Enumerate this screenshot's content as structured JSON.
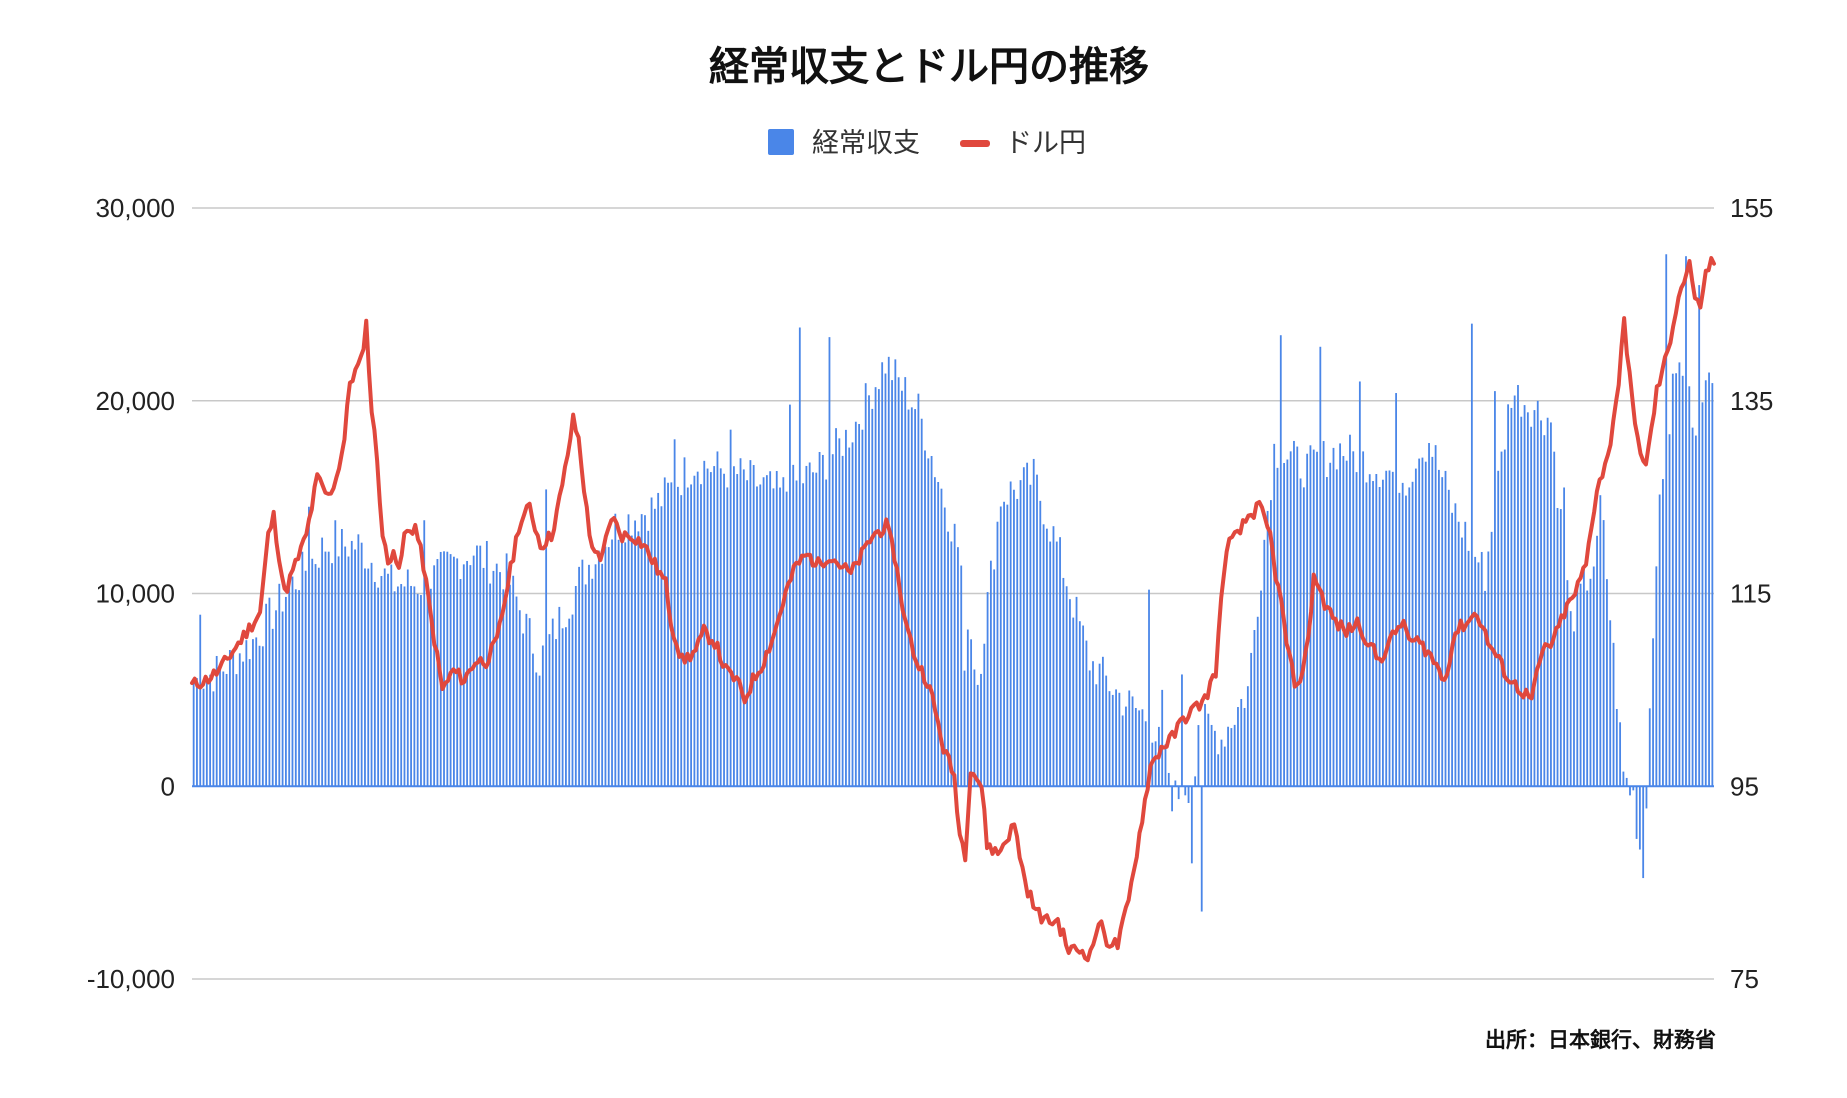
{
  "chart_data": {
    "type": "bar+line",
    "title": "経常収支とドル円の推移",
    "source": "出所：日本銀行、財務省",
    "legend": [
      {
        "name": "経常収支",
        "color": "#4a86e8",
        "kind": "bar"
      },
      {
        "name": "ドル円",
        "color": "#e0483d",
        "kind": "line"
      }
    ],
    "legend_position": "top-center",
    "grid": true,
    "y_left": {
      "min": -10000,
      "max": 30000,
      "ticks": [
        "30,000",
        "20,000",
        "10,000",
        "0",
        "-10,000"
      ],
      "tick_values": [
        30000,
        20000,
        10000,
        0,
        -10000
      ]
    },
    "y_right": {
      "min": 75,
      "max": 155,
      "ticks": [
        "155",
        "135",
        "115",
        "95",
        "75"
      ],
      "tick_values": [
        155,
        135,
        115,
        95,
        75
      ]
    },
    "series": [
      {
        "name": "経常収支",
        "axis": "left",
        "keypoints": [
          [
            0,
            5400
          ],
          [
            8,
            6000
          ],
          [
            18,
            7500
          ],
          [
            30,
            10500
          ],
          [
            40,
            12500
          ],
          [
            50,
            12500
          ],
          [
            60,
            10500
          ],
          [
            70,
            10500
          ],
          [
            78,
            11500
          ],
          [
            85,
            12200
          ],
          [
            95,
            11000
          ],
          [
            105,
            6500
          ],
          [
            118,
            11000
          ],
          [
            128,
            13500
          ],
          [
            140,
            14500
          ],
          [
            152,
            16800
          ],
          [
            165,
            16200
          ],
          [
            178,
            15200
          ],
          [
            190,
            16500
          ],
          [
            200,
            18500
          ],
          [
            210,
            22000
          ],
          [
            220,
            19500
          ],
          [
            232,
            12500
          ],
          [
            238,
            5500
          ],
          [
            245,
            15000
          ],
          [
            255,
            16000
          ],
          [
            262,
            12500
          ],
          [
            272,
            6500
          ],
          [
            282,
            4500
          ],
          [
            290,
            3500
          ],
          [
            296,
            800
          ],
          [
            303,
            -500
          ],
          [
            305,
            3500
          ],
          [
            312,
            2500
          ],
          [
            320,
            5000
          ],
          [
            328,
            17500
          ],
          [
            338,
            16500
          ],
          [
            348,
            17500
          ],
          [
            360,
            16500
          ],
          [
            368,
            16000
          ],
          [
            375,
            18000
          ],
          [
            382,
            14500
          ],
          [
            392,
            11000
          ],
          [
            400,
            20500
          ],
          [
            412,
            19000
          ],
          [
            418,
            8500
          ],
          [
            428,
            13000
          ],
          [
            434,
            600
          ],
          [
            437,
            -500
          ],
          [
            440,
            -4500
          ],
          [
            444,
            12500
          ],
          [
            450,
            22000
          ],
          [
            457,
            18500
          ],
          [
            461,
            22000
          ]
        ],
        "spikes": [
          [
            2,
            8900
          ],
          [
            35,
            14500
          ],
          [
            43,
            13800
          ],
          [
            70,
            13800
          ],
          [
            107,
            15400
          ],
          [
            146,
            18000
          ],
          [
            163,
            18500
          ],
          [
            181,
            19800
          ],
          [
            184,
            23800
          ],
          [
            193,
            23300
          ],
          [
            234,
            6000
          ],
          [
            290,
            10200
          ],
          [
            294,
            5000
          ],
          [
            297,
            -1300
          ],
          [
            300,
            5800
          ],
          [
            303,
            -4000
          ],
          [
            306,
            -6500
          ],
          [
            330,
            23400
          ],
          [
            342,
            22800
          ],
          [
            354,
            21000
          ],
          [
            365,
            20400
          ],
          [
            372,
            17000
          ],
          [
            388,
            24000
          ],
          [
            395,
            20500
          ],
          [
            416,
            15500
          ],
          [
            427,
            15100
          ],
          [
            447,
            27600
          ],
          [
            453,
            27500
          ],
          [
            457,
            26000
          ]
        ]
      },
      {
        "name": "ドル円",
        "axis": "right",
        "keypoints": [
          [
            0,
            105.5
          ],
          [
            5,
            106
          ],
          [
            10,
            107
          ],
          [
            15,
            109
          ],
          [
            20,
            111
          ],
          [
            25,
            113
          ],
          [
            28,
            121
          ],
          [
            30,
            123
          ],
          [
            32,
            119
          ],
          [
            34,
            115
          ],
          [
            38,
            118
          ],
          [
            42,
            121
          ],
          [
            46,
            127
          ],
          [
            50,
            125
          ],
          [
            53,
            127
          ],
          [
            56,
            131
          ],
          [
            58,
            137
          ],
          [
            62,
            139
          ],
          [
            64,
            143
          ],
          [
            66,
            134
          ],
          [
            68,
            129
          ],
          [
            70,
            121
          ],
          [
            72,
            118
          ],
          [
            74,
            120
          ],
          [
            76,
            117
          ],
          [
            78,
            121
          ],
          [
            82,
            122
          ],
          [
            85,
            118
          ],
          [
            88,
            112
          ],
          [
            92,
            105
          ],
          [
            96,
            107
          ],
          [
            100,
            106
          ],
          [
            104,
            108
          ],
          [
            108,
            108
          ],
          [
            112,
            110
          ],
          [
            116,
            116
          ],
          [
            120,
            122
          ],
          [
            124,
            124
          ],
          [
            128,
            120
          ],
          [
            132,
            121
          ],
          [
            136,
            126
          ],
          [
            140,
            133
          ],
          [
            142,
            131
          ],
          [
            144,
            126
          ],
          [
            146,
            121
          ],
          [
            150,
            118
          ],
          [
            154,
            123
          ],
          [
            158,
            121
          ],
          [
            162,
            121
          ],
          [
            166,
            120
          ],
          [
            170,
            118
          ],
          [
            174,
            116
          ],
          [
            176,
            112
          ],
          [
            180,
            108
          ],
          [
            185,
            109
          ],
          [
            188,
            111
          ],
          [
            192,
            110
          ],
          [
            196,
            107
          ],
          [
            200,
            106
          ],
          [
            203,
            104
          ],
          [
            206,
            106
          ],
          [
            210,
            108
          ],
          [
            214,
            111
          ],
          [
            218,
            115
          ],
          [
            222,
            118
          ],
          [
            226,
            119
          ],
          [
            230,
            118
          ],
          [
            234,
            119
          ],
          [
            238,
            118
          ],
          [
            242,
            117
          ],
          [
            246,
            119
          ],
          [
            250,
            121
          ],
          [
            255,
            122
          ],
          [
            258,
            119
          ],
          [
            262,
            112
          ],
          [
            266,
            108
          ],
          [
            270,
            106
          ],
          [
            272,
            104
          ],
          [
            276,
            99
          ],
          [
            280,
            96
          ],
          [
            282,
            90
          ],
          [
            284,
            88
          ],
          [
            286,
            97
          ],
          [
            290,
            95
          ],
          [
            292,
            89
          ],
          [
            296,
            88
          ],
          [
            300,
            90
          ],
          [
            302,
            91
          ],
          [
            306,
            85
          ],
          [
            310,
            82
          ],
          [
            314,
            81
          ],
          [
            318,
            81
          ],
          [
            322,
            78
          ],
          [
            326,
            78
          ],
          [
            330,
            77.5
          ],
          [
            333,
            81
          ],
          [
            336,
            79
          ],
          [
            340,
            78.5
          ],
          [
            344,
            83
          ],
          [
            348,
            90
          ],
          [
            352,
            97
          ],
          [
            356,
            99
          ],
          [
            360,
            100
          ],
          [
            364,
            102
          ],
          [
            368,
            103
          ],
          [
            372,
            104
          ],
          [
            376,
            107
          ],
          [
            378,
            114
          ],
          [
            380,
            120
          ],
          [
            384,
            121
          ],
          [
            388,
            123
          ],
          [
            392,
            124
          ],
          [
            396,
            121
          ],
          [
            398,
            117
          ],
          [
            400,
            114
          ],
          [
            402,
            110
          ],
          [
            404,
            107
          ],
          [
            406,
            105
          ],
          [
            410,
            110
          ],
          [
            412,
            117
          ],
          [
            416,
            114
          ],
          [
            420,
            112
          ],
          [
            424,
            111
          ],
          [
            428,
            112
          ],
          [
            432,
            110
          ],
          [
            436,
            108
          ],
          [
            440,
            110
          ],
          [
            444,
            112
          ],
          [
            448,
            110
          ],
          [
            450,
            110
          ],
          [
            454,
            109
          ],
          [
            458,
            107
          ],
          [
            460,
            106
          ],
          [
            464,
            111
          ],
          [
            468,
            112
          ],
          [
            472,
            113
          ],
          [
            476,
            110
          ],
          [
            480,
            108
          ],
          [
            484,
            106
          ],
          [
            488,
            105
          ],
          [
            492,
            104
          ],
          [
            496,
            109
          ],
          [
            500,
            110
          ],
          [
            504,
            113
          ],
          [
            508,
            115
          ],
          [
            512,
            118
          ],
          [
            516,
            126
          ],
          [
            520,
            129
          ],
          [
            524,
            137
          ],
          [
            526,
            143
          ],
          [
            528,
            138
          ],
          [
            530,
            132
          ],
          [
            534,
            128
          ],
          [
            538,
            136
          ],
          [
            542,
            140
          ],
          [
            546,
            146
          ],
          [
            550,
            149
          ],
          [
            552,
            146
          ],
          [
            554,
            144
          ],
          [
            556,
            148
          ],
          [
            558,
            149.5
          ]
        ]
      }
    ]
  }
}
